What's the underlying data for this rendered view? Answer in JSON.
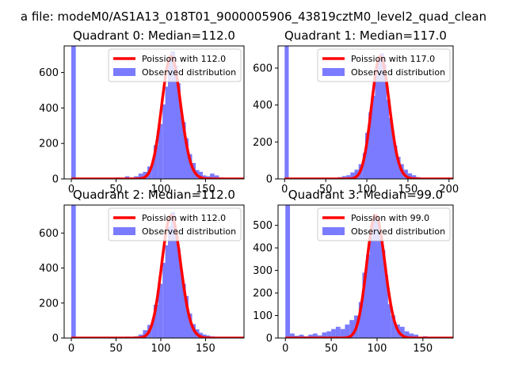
{
  "figure": {
    "suptitle": "a file: modeM0/AS1A13_018T01_9000005906_43819cztM0_level2_quad_clean",
    "colors": {
      "bars": "#7b7bff",
      "curve": "#ff0000",
      "axes": "#000000",
      "background": "#ffffff"
    }
  },
  "chart_data": [
    {
      "type": "bar",
      "title": "Quadrant 0: Median=112.0",
      "xlim": [
        -8,
        193
      ],
      "ylim": [
        0,
        750
      ],
      "xticks": [
        0,
        50,
        100,
        150
      ],
      "yticks": [
        0,
        200,
        400,
        600
      ],
      "grid": false,
      "legend_position": "top-right",
      "legend": [
        "Poission with 112.0",
        "Observed distribution"
      ],
      "poisson_mean": 112,
      "hist_bins": [
        [
          0,
          5,
          750
        ],
        [
          50,
          5,
          8
        ],
        [
          55,
          5,
          0
        ],
        [
          60,
          5,
          15
        ],
        [
          65,
          5,
          8
        ],
        [
          70,
          5,
          15
        ],
        [
          75,
          5,
          30
        ],
        [
          80,
          5,
          40
        ],
        [
          85,
          5,
          70
        ],
        [
          90,
          5,
          110
        ],
        [
          92,
          5,
          190
        ],
        [
          97,
          5,
          310
        ],
        [
          102,
          5,
          420
        ],
        [
          105,
          5,
          520
        ],
        [
          108,
          5,
          660
        ],
        [
          111,
          5,
          720
        ],
        [
          114,
          5,
          640
        ],
        [
          117,
          5,
          540
        ],
        [
          120,
          5,
          360
        ],
        [
          123,
          5,
          320
        ],
        [
          126,
          5,
          230
        ],
        [
          130,
          5,
          140
        ],
        [
          134,
          5,
          90
        ],
        [
          138,
          5,
          50
        ],
        [
          142,
          5,
          40
        ],
        [
          146,
          5,
          20
        ],
        [
          150,
          5,
          15
        ],
        [
          155,
          5,
          30
        ],
        [
          160,
          5,
          20
        ],
        [
          165,
          5,
          8
        ],
        [
          170,
          5,
          5
        ],
        [
          180,
          5,
          2
        ]
      ]
    },
    {
      "type": "bar",
      "title": "Quadrant 1: Median=117.0",
      "xlim": [
        -8,
        205
      ],
      "ylim": [
        0,
        720
      ],
      "xticks": [
        0,
        50,
        100,
        150,
        200
      ],
      "yticks": [
        0,
        200,
        400,
        600
      ],
      "grid": false,
      "legend_position": "top-right",
      "legend": [
        "Poission with 117.0",
        "Observed distribution"
      ],
      "poisson_mean": 117,
      "hist_bins": [
        [
          0,
          5,
          720
        ],
        [
          60,
          5,
          5
        ],
        [
          65,
          5,
          10
        ],
        [
          70,
          5,
          15
        ],
        [
          75,
          5,
          20
        ],
        [
          80,
          5,
          35
        ],
        [
          85,
          5,
          50
        ],
        [
          90,
          5,
          80
        ],
        [
          95,
          5,
          140
        ],
        [
          98,
          5,
          250
        ],
        [
          102,
          5,
          360
        ],
        [
          106,
          5,
          450
        ],
        [
          110,
          5,
          560
        ],
        [
          113,
          5,
          650
        ],
        [
          116,
          5,
          680
        ],
        [
          119,
          5,
          620
        ],
        [
          122,
          5,
          430
        ],
        [
          125,
          5,
          330
        ],
        [
          128,
          5,
          260
        ],
        [
          132,
          5,
          180
        ],
        [
          136,
          5,
          120
        ],
        [
          140,
          5,
          80
        ],
        [
          145,
          5,
          50
        ],
        [
          150,
          5,
          30
        ],
        [
          155,
          5,
          20
        ],
        [
          160,
          5,
          10
        ],
        [
          170,
          5,
          5
        ],
        [
          190,
          5,
          2
        ]
      ]
    },
    {
      "type": "bar",
      "title": "Quadrant 2: Median=112.0",
      "xlim": [
        -8,
        193
      ],
      "ylim": [
        0,
        760
      ],
      "xticks": [
        0,
        50,
        100,
        150
      ],
      "yticks": [
        0,
        200,
        400,
        600
      ],
      "grid": false,
      "legend_position": "top-right",
      "legend": [
        "Poission with 112.0",
        "Observed distribution"
      ],
      "poisson_mean": 112,
      "hist_bins": [
        [
          0,
          5,
          760
        ],
        [
          60,
          5,
          8
        ],
        [
          65,
          5,
          5
        ],
        [
          70,
          5,
          10
        ],
        [
          75,
          5,
          20
        ],
        [
          80,
          5,
          45
        ],
        [
          85,
          5,
          75
        ],
        [
          90,
          5,
          110
        ],
        [
          92,
          5,
          190
        ],
        [
          97,
          5,
          310
        ],
        [
          102,
          5,
          430
        ],
        [
          105,
          5,
          530
        ],
        [
          108,
          5,
          640
        ],
        [
          111,
          5,
          720
        ],
        [
          114,
          5,
          600
        ],
        [
          117,
          5,
          510
        ],
        [
          120,
          5,
          380
        ],
        [
          123,
          5,
          310
        ],
        [
          126,
          5,
          240
        ],
        [
          130,
          5,
          140
        ],
        [
          134,
          5,
          80
        ],
        [
          138,
          5,
          50
        ],
        [
          142,
          5,
          30
        ],
        [
          146,
          5,
          20
        ],
        [
          150,
          5,
          15
        ],
        [
          155,
          5,
          10
        ],
        [
          160,
          5,
          5
        ],
        [
          175,
          5,
          2
        ]
      ]
    },
    {
      "type": "bar",
      "title": "Quadrant 3: Median=99.0",
      "xlim": [
        -8,
        183
      ],
      "ylim": [
        0,
        590
      ],
      "xticks": [
        0,
        50,
        100,
        150
      ],
      "yticks": [
        0,
        100,
        200,
        300,
        400,
        500
      ],
      "grid": false,
      "legend_position": "top-right",
      "legend": [
        "Poission with 99.0",
        "Observed distribution"
      ],
      "poisson_mean": 99,
      "hist_bins": [
        [
          0,
          5,
          590
        ],
        [
          5,
          5,
          20
        ],
        [
          10,
          5,
          10
        ],
        [
          15,
          5,
          15
        ],
        [
          20,
          5,
          8
        ],
        [
          25,
          5,
          15
        ],
        [
          30,
          5,
          20
        ],
        [
          35,
          5,
          12
        ],
        [
          40,
          5,
          25
        ],
        [
          45,
          5,
          30
        ],
        [
          50,
          5,
          40
        ],
        [
          55,
          5,
          50
        ],
        [
          60,
          5,
          40
        ],
        [
          65,
          5,
          60
        ],
        [
          70,
          5,
          80
        ],
        [
          75,
          5,
          100
        ],
        [
          80,
          5,
          160
        ],
        [
          84,
          5,
          290
        ],
        [
          88,
          5,
          370
        ],
        [
          92,
          5,
          450
        ],
        [
          95,
          5,
          540
        ],
        [
          98,
          5,
          520
        ],
        [
          101,
          5,
          440
        ],
        [
          104,
          5,
          390
        ],
        [
          107,
          5,
          280
        ],
        [
          110,
          5,
          150
        ],
        [
          115,
          5,
          100
        ],
        [
          120,
          5,
          60
        ],
        [
          125,
          5,
          50
        ],
        [
          130,
          5,
          30
        ],
        [
          135,
          5,
          20
        ],
        [
          140,
          5,
          15
        ],
        [
          150,
          5,
          8
        ],
        [
          160,
          5,
          5
        ],
        [
          170,
          5,
          2
        ]
      ]
    }
  ]
}
